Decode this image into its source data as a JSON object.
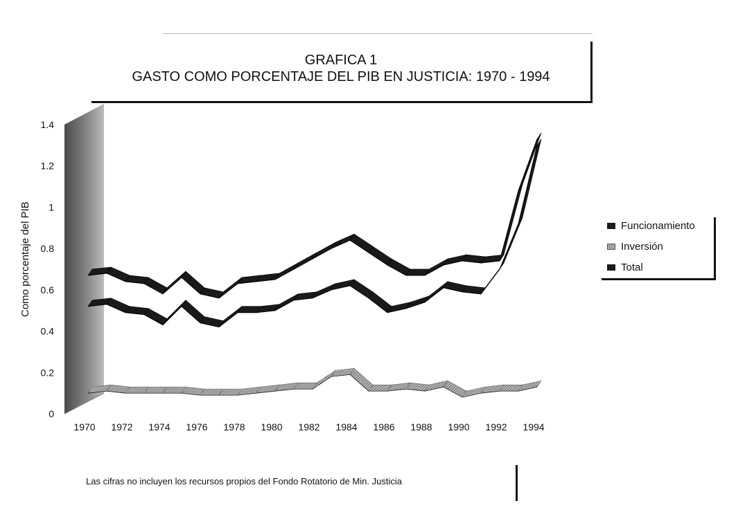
{
  "title": {
    "line1": "GRAFICA 1",
    "line2": "GASTO COMO PORCENTAJE DEL PIB EN JUSTICIA: 1970 - 1994"
  },
  "footnote": "Las cifras no incluyen los recursos propios del Fondo Rotatorio de Min. Justicia",
  "colors": {
    "funcionamiento": "#1a1a1a",
    "inversion": "#9a9a9a",
    "total": "#1a1a1a",
    "wall": "#7a7a7a"
  },
  "chart_data": {
    "type": "line",
    "title": "GASTO COMO PORCENTAJE DEL PIB EN JUSTICIA: 1970 - 1994",
    "xlabel": "",
    "ylabel": "Como porcentaje del PIB",
    "ylim": [
      0,
      1.4
    ],
    "y_ticks": [
      "0",
      "0.2",
      "0.4",
      "0.6",
      "0.8",
      "1",
      "1.2",
      "1.4"
    ],
    "x_ticks": [
      "1970",
      "1972",
      "1974",
      "1976",
      "1978",
      "1980",
      "1982",
      "1984",
      "1986",
      "1988",
      "1990",
      "1992",
      "1994"
    ],
    "x": [
      1970,
      1971,
      1972,
      1973,
      1974,
      1975,
      1976,
      1977,
      1978,
      1979,
      1980,
      1981,
      1982,
      1983,
      1984,
      1985,
      1986,
      1987,
      1988,
      1989,
      1990,
      1991,
      1992,
      1993,
      1994
    ],
    "legend_position": "right",
    "series": [
      {
        "name": "Funcionamiento",
        "values": [
          0.52,
          0.53,
          0.49,
          0.48,
          0.43,
          0.52,
          0.44,
          0.42,
          0.49,
          0.49,
          0.5,
          0.55,
          0.56,
          0.6,
          0.62,
          0.56,
          0.49,
          0.51,
          0.54,
          0.61,
          0.59,
          0.58,
          0.7,
          0.92,
          1.3
        ]
      },
      {
        "name": "Inversión",
        "values": [
          0.1,
          0.11,
          0.1,
          0.1,
          0.1,
          0.1,
          0.09,
          0.09,
          0.09,
          0.1,
          0.11,
          0.12,
          0.12,
          0.18,
          0.19,
          0.11,
          0.11,
          0.12,
          0.11,
          0.13,
          0.08,
          0.1,
          0.11,
          0.11,
          0.13
        ]
      },
      {
        "name": "Total",
        "values": [
          0.67,
          0.68,
          0.64,
          0.63,
          0.58,
          0.66,
          0.58,
          0.56,
          0.63,
          0.64,
          0.65,
          0.7,
          0.75,
          0.8,
          0.84,
          0.78,
          0.72,
          0.67,
          0.67,
          0.72,
          0.74,
          0.73,
          0.74,
          1.08,
          1.33
        ]
      }
    ]
  }
}
